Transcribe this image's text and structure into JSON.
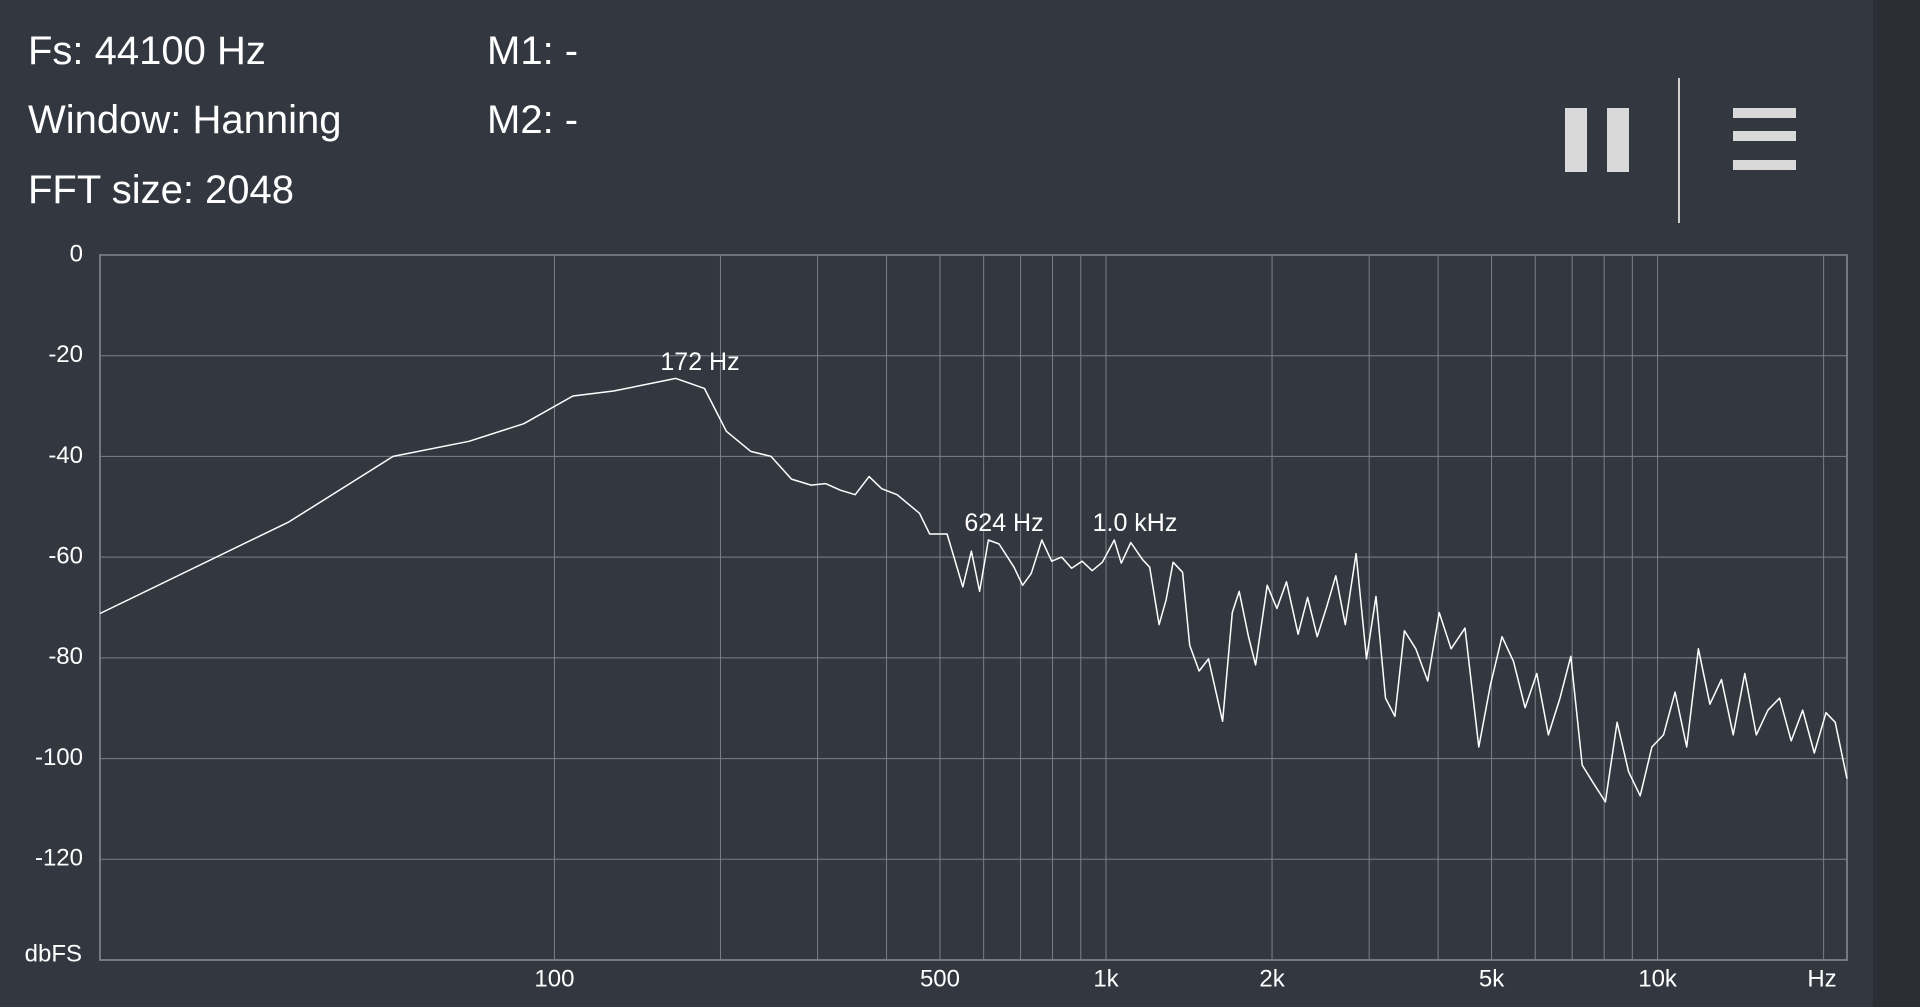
{
  "status": {
    "fs": "Fs: 44100 Hz",
    "window": "Window: Hanning",
    "fft_size": "FFT size: 2048",
    "m1": "M1: -",
    "m2": "M2: -"
  },
  "chart_data": {
    "type": "line",
    "x_scale": "log",
    "xlim": [
      15,
      22050
    ],
    "ylim": [
      -140,
      0
    ],
    "xticks": [
      100,
      500,
      {
        "value": 1000,
        "label": "1k"
      },
      {
        "value": 2000,
        "label": "2k"
      },
      {
        "value": 5000,
        "label": "5k"
      },
      {
        "value": 10000,
        "label": "10k"
      }
    ],
    "xgrid": [
      200,
      300,
      400,
      600,
      700,
      800,
      900,
      3000,
      4000,
      6000,
      7000,
      8000,
      9000,
      20000
    ],
    "yticks": [
      0,
      -20,
      -40,
      -60,
      -80,
      -100,
      -120
    ],
    "x_label": "Hz",
    "y_label": "dbFS",
    "grid": true,
    "color": "#ffffff",
    "annotations": [
      "172 Hz",
      "624 Hz",
      "1.0  kHz"
    ],
    "x": [
      15,
      33,
      51,
      70,
      88,
      108,
      128,
      166,
      187,
      205,
      227,
      247,
      269,
      292,
      310,
      330,
      351,
      372,
      392,
      418,
      459,
      479,
      515,
      550,
      570,
      590,
      612,
      640,
      681,
      706,
      732,
      765,
      797,
      831,
      866,
      905,
      944,
      985,
      1035,
      1066,
      1109,
      1165,
      1200,
      1248,
      1285,
      1323,
      1377,
      1418,
      1475,
      1534,
      1627,
      1694,
      1744,
      1813,
      1867,
      1960,
      2041,
      2124,
      2230,
      2320,
      2415,
      2510,
      2610,
      2715,
      2840,
      2967,
      3087,
      3211,
      3340,
      3475,
      3645,
      3830,
      4018,
      4223,
      4475,
      4740,
      4975,
      5222,
      5480,
      5752,
      6040,
      6340,
      6655,
      6962,
      7300,
      7663,
      8043,
      8444,
      8862,
      9300,
      9765,
      10250,
      10760,
      11290,
      11860,
      12440,
      13060,
      13710,
      14390,
      15100,
      15850,
      16640,
      17470,
      18330,
      19240,
      20200,
      20990,
      22050
    ],
    "values": [
      -71.2,
      -53,
      -40,
      -37,
      -33.5,
      -28,
      -27,
      -24.5,
      -26.5,
      -35,
      -39,
      -40,
      -44.5,
      -45.7,
      -45.4,
      -46.7,
      -47.6,
      -44,
      -46.4,
      -47.6,
      -51.3,
      -55.4,
      -55.4,
      -65.9,
      -58.8,
      -66.8,
      -56.6,
      -57.4,
      -62,
      -65.6,
      -63.2,
      -56.6,
      -60.8,
      -60,
      -62.2,
      -60.8,
      -62.7,
      -61,
      -56.6,
      -61.2,
      -57.1,
      -60.5,
      -62,
      -73.4,
      -68.5,
      -61,
      -63,
      -77.5,
      -82.6,
      -80.2,
      -92.6,
      -71,
      -66.8,
      -75.8,
      -81.4,
      -65.6,
      -70.2,
      -64.9,
      -75.3,
      -68,
      -75.8,
      -70,
      -63.7,
      -73.4,
      -59.3,
      -80.2,
      -67.8,
      -88,
      -91.6,
      -74.6,
      -78.2,
      -84.6,
      -71,
      -78.2,
      -74.1,
      -97.7,
      -85.5,
      -75.8,
      -80.7,
      -89.9,
      -83.1,
      -95.3,
      -88,
      -79.7,
      -101.3,
      -105,
      -108.6,
      -92.8,
      -102.6,
      -107.4,
      -97.7,
      -95.3,
      -86.8,
      -97.7,
      -78.2,
      -89.2,
      -84.3,
      -95.3,
      -83.1,
      -95.3,
      -90.4,
      -88,
      -96.5,
      -90.4,
      -98.9,
      -90.9,
      -92.8,
      -104
    ]
  }
}
